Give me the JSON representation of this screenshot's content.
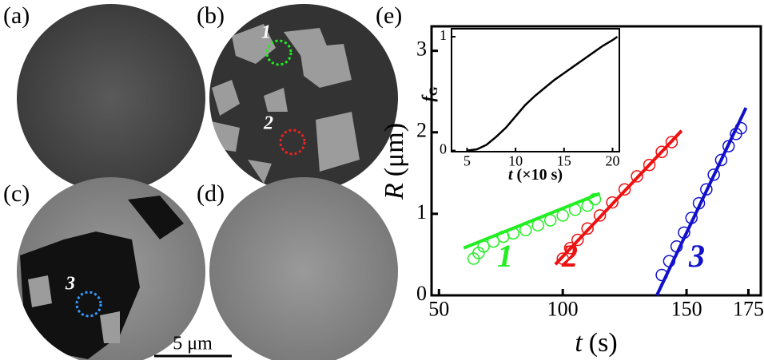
{
  "panels": [
    {
      "label": "(a)"
    },
    {
      "label": "(b)"
    },
    {
      "label": "(c)"
    },
    {
      "label": "(d)"
    }
  ],
  "markers": [
    "1",
    "2",
    "3"
  ],
  "scale_bar": "5 μm",
  "chart_data": [
    {
      "type": "scatter",
      "panel_label": "(e)",
      "xlabel": [
        "t",
        "(s)"
      ],
      "ylabel": [
        "R",
        "(μm)"
      ],
      "xlim": [
        47,
        180
      ],
      "xticks": [
        50,
        100,
        150,
        175
      ],
      "ylim": [
        0,
        3.3
      ],
      "yticks": [
        0,
        1,
        2,
        3
      ],
      "series": [
        {
          "name": "1",
          "color": "#22ee22",
          "x": [
            64,
            66,
            68,
            72,
            76,
            80,
            85,
            90,
            95,
            100,
            105,
            110,
            113
          ],
          "values": [
            0.45,
            0.52,
            0.6,
            0.66,
            0.72,
            0.76,
            0.8,
            0.86,
            0.92,
            0.98,
            1.05,
            1.1,
            1.18
          ],
          "fit_x": [
            60,
            115
          ],
          "fit_values": [
            0.58,
            1.25
          ]
        },
        {
          "name": "2",
          "color": "#ee1111",
          "x": [
            100,
            103,
            106,
            110,
            115,
            120,
            125,
            130,
            135,
            140,
            144
          ],
          "values": [
            0.45,
            0.58,
            0.68,
            0.82,
            0.98,
            1.14,
            1.3,
            1.46,
            1.6,
            1.76,
            1.88
          ],
          "fit_x": [
            97,
            148
          ],
          "fit_values": [
            0.38,
            2.02
          ]
        },
        {
          "name": "3",
          "color": "#1111cc",
          "x": [
            140,
            143,
            146,
            149,
            152,
            155,
            158,
            161,
            164,
            167,
            170,
            172
          ],
          "values": [
            0.25,
            0.42,
            0.6,
            0.77,
            0.95,
            1.13,
            1.3,
            1.48,
            1.66,
            1.83,
            1.98,
            2.05
          ],
          "fit_x": [
            138,
            174
          ],
          "fit_values": [
            0,
            2.3
          ]
        }
      ]
    },
    {
      "type": "line",
      "xlabel": [
        "t",
        "(×10 s)"
      ],
      "ylabel": [
        "f",
        "G"
      ],
      "xlim": [
        3.4,
        20.7
      ],
      "xticks": [
        5,
        10,
        15,
        20
      ],
      "ylim": [
        -0.01,
        1.07
      ],
      "yticks": [
        0,
        1
      ],
      "series": [
        {
          "color": "#000000",
          "x": [
            5,
            6,
            7,
            8,
            9,
            10,
            11,
            12,
            13,
            14,
            15,
            16,
            17,
            18,
            19,
            20,
            20.5
          ],
          "values": [
            0,
            0.01,
            0.05,
            0.12,
            0.2,
            0.3,
            0.4,
            0.48,
            0.55,
            0.62,
            0.68,
            0.74,
            0.8,
            0.86,
            0.92,
            0.97,
            1
          ]
        }
      ]
    }
  ]
}
